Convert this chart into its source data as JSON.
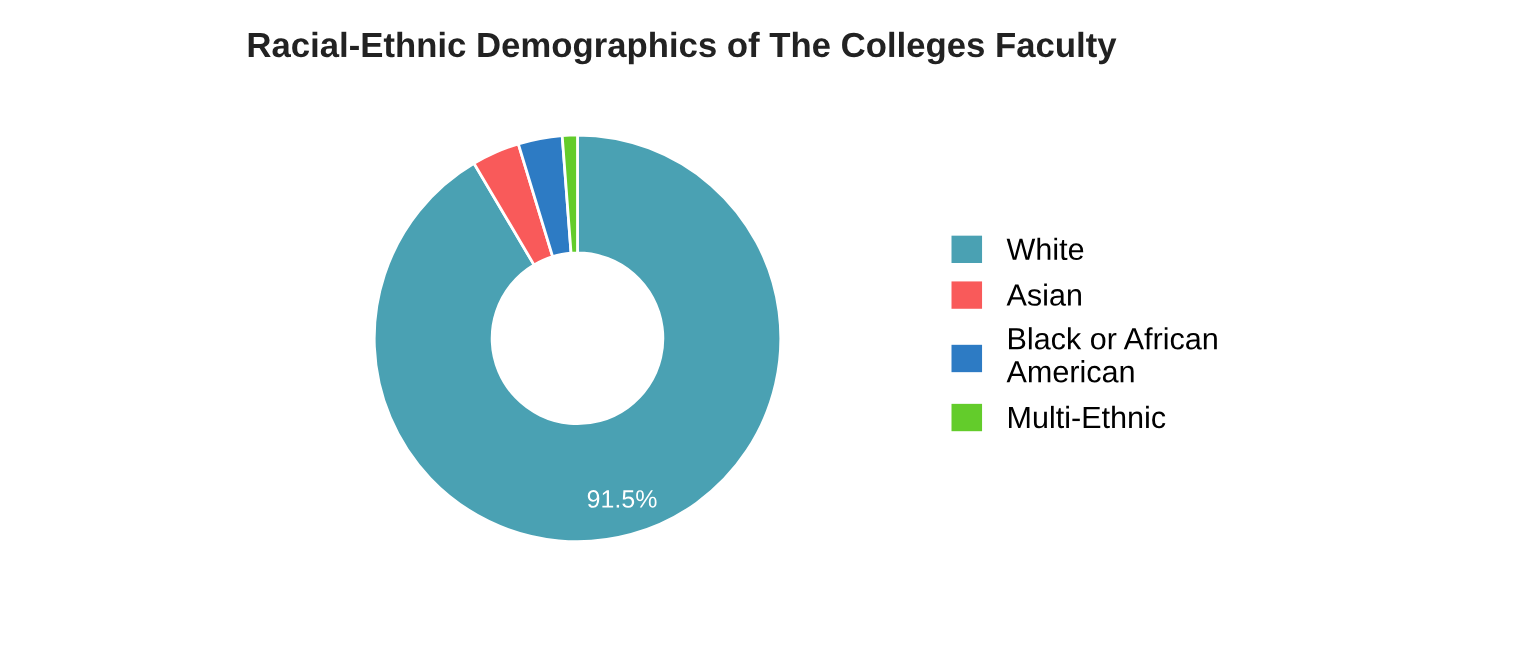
{
  "chart_data": {
    "type": "donut",
    "title": "Racial-Ethnic Demographics of The Colleges Faculty",
    "categories": [
      "White",
      "Asian",
      "Black or African American",
      "Multi-Ethnic"
    ],
    "values": [
      91.5,
      3.8,
      3.5,
      1.2
    ],
    "colors": [
      "#4aa1b3",
      "#f95a5a",
      "#2d7bc4",
      "#63cc2b"
    ],
    "value_labels": [
      "91.5%",
      null,
      null,
      null
    ],
    "legend": "right"
  }
}
